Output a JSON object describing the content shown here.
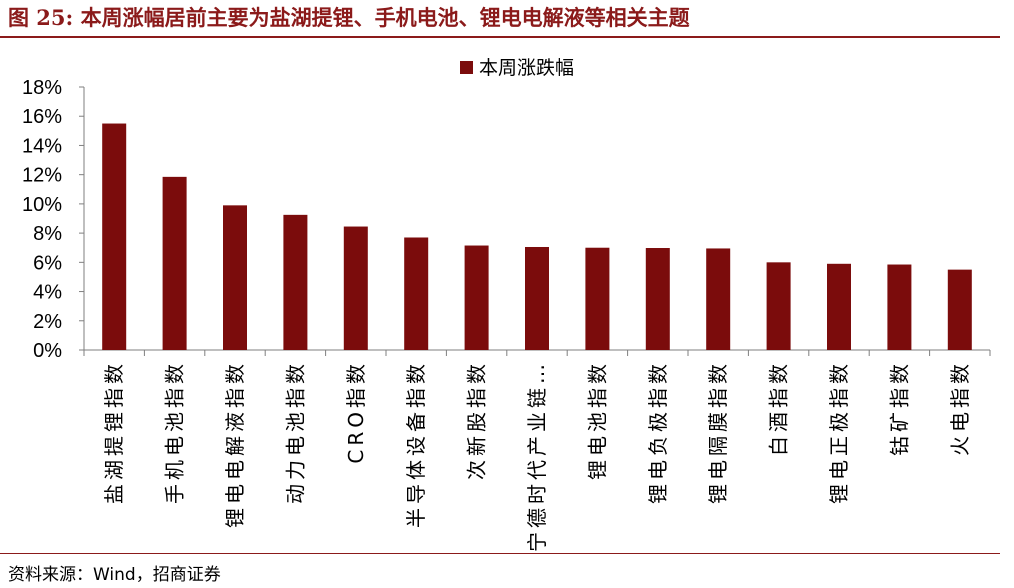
{
  "figure": {
    "title": "图 25:  本周涨幅居前主要为盐湖提锂、手机电池、锂电电解液等相关主题",
    "source": "资料来源：Wind，招商证券"
  },
  "chart_data": {
    "type": "bar",
    "categories": [
      "盐湖提锂指数",
      "手机电池指数",
      "锂电电解液指数",
      "动力电池指数",
      "CRO指数",
      "半导体设备指数",
      "次新股指数",
      "宁德时代产业链…",
      "锂电池指数",
      "锂电负极指数",
      "锂电隔膜指数",
      "白酒指数",
      "锂电正极指数",
      "钴矿指数",
      "火电指数"
    ],
    "series": [
      {
        "name": "本周涨跌幅",
        "values": [
          15.5,
          11.85,
          9.9,
          9.25,
          8.45,
          7.7,
          7.15,
          7.05,
          7.0,
          6.98,
          6.95,
          6.0,
          5.9,
          5.85,
          5.5
        ]
      }
    ],
    "ylim": [
      0,
      18
    ],
    "yticks": [
      "0%",
      "2%",
      "4%",
      "6%",
      "8%",
      "10%",
      "12%",
      "14%",
      "16%",
      "18%"
    ],
    "bar_color": "#7B0C0C",
    "legend_position": "top-center",
    "grid": false
  }
}
